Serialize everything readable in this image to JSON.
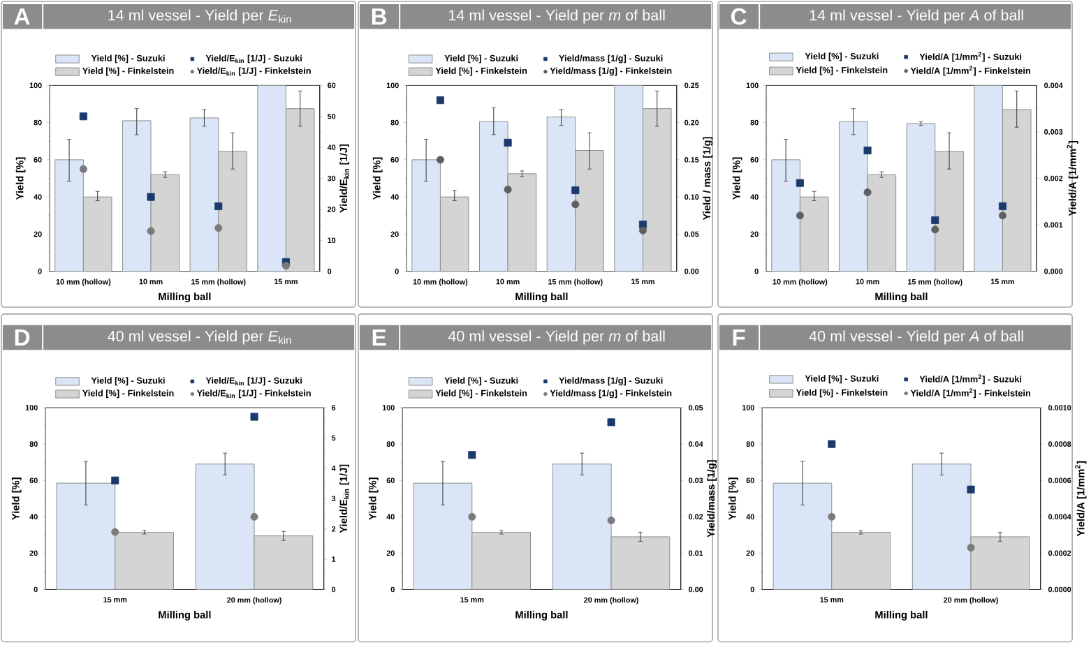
{
  "chart_data": [
    {
      "type": "bar",
      "title": "14 ml vessel - Yield per *E*$_{kin}$",
      "annotations": [
        "A"
      ],
      "categories": [
        "10 mm (hollow)",
        "10 mm",
        "15 mm (hollow)",
        "15 mm"
      ],
      "xlabel": "Milling ball",
      "ylabel": "Yield [%]",
      "y2label": "Yield/E$_{kin}$ [1/J]",
      "ylim": [
        0,
        100
      ],
      "yticks": [
        0,
        20,
        40,
        60,
        80,
        100
      ],
      "y2lim": [
        0,
        60
      ],
      "y2ticks": [
        0,
        10,
        20,
        30,
        40,
        50,
        60
      ],
      "legend": "top",
      "series": [
        {
          "name": "Yield [%] - Suzuki",
          "type": "bar",
          "color": "#dae6f7",
          "values": [
            60,
            81,
            82.5,
            100
          ],
          "errors": [
            [
              48.5,
              71
            ],
            [
              73.5,
              87.5
            ],
            [
              78,
              87
            ],
            null
          ]
        },
        {
          "name": "Yield/E$_{kin}$ [1/J] - Suzuki",
          "type": "scatter",
          "axis": "y2",
          "marker": "square",
          "color": "#1a3a6b",
          "values": [
            50,
            24,
            21,
            3
          ]
        },
        {
          "name": "Yield [%] - Finkelstein",
          "type": "bar",
          "color": "#d4d4d4",
          "values": [
            40,
            52,
            64.5,
            87.5
          ],
          "errors": [
            [
              38,
              43
            ],
            [
              50.5,
              53.5
            ],
            [
              55,
              74.5
            ],
            [
              78,
              97
            ]
          ]
        },
        {
          "name": "Yield/E$_{kin}$ [1/J] - Finkelstein",
          "type": "scatter",
          "axis": "y2",
          "marker": "circle",
          "color": "#7a7a7a",
          "values": [
            33,
            13,
            14,
            1.8
          ]
        }
      ]
    },
    {
      "type": "bar",
      "title": "14 ml vessel - Yield per *m* of ball",
      "annotations": [
        "B"
      ],
      "categories": [
        "10 mm (hollow)",
        "10 mm",
        "15 mm (hollow)",
        "15 mm"
      ],
      "xlabel": "Milling ball",
      "ylabel": "Yield [%]",
      "y2label": "Yield / mass [1/g]",
      "ylim": [
        0,
        100
      ],
      "yticks": [
        0,
        20,
        40,
        60,
        80,
        100
      ],
      "y2lim": [
        0,
        0.25
      ],
      "y2ticks": [
        {
          "value": 0,
          "label": "0.00"
        },
        0.05,
        {
          "value": 0.1,
          "label": "0.10"
        },
        0.15,
        {
          "value": 0.2,
          "label": "0.20"
        },
        0.25
      ],
      "legend": "top",
      "series": [
        {
          "name": "Yield [%] - Suzuki",
          "type": "bar",
          "color": "#dae6f7",
          "values": [
            60,
            80.5,
            83,
            100
          ],
          "errors": [
            [
              48.5,
              71
            ],
            [
              73.5,
              88
            ],
            [
              78.5,
              87
            ],
            null
          ]
        },
        {
          "name": "Yield/mass [1/g] - Suzuki",
          "type": "scatter",
          "axis": "y2",
          "marker": "square",
          "color": "#1a3a6b",
          "values": [
            0.23,
            0.173,
            0.109,
            0.063
          ]
        },
        {
          "name": "Yield [%] - Finkelstein",
          "type": "bar",
          "color": "#d4d4d4",
          "values": [
            40,
            52.5,
            65,
            87.5
          ],
          "errors": [
            [
              38,
              43.5
            ],
            [
              51,
              54
            ],
            [
              55,
              74.5
            ],
            [
              78,
              97
            ]
          ]
        },
        {
          "name": "Yield/mass [1/g] - Finkelstein",
          "type": "scatter",
          "axis": "y2",
          "marker": "circle",
          "color": "#5f5f5f",
          "values": [
            0.15,
            0.11,
            0.09,
            0.055
          ]
        }
      ]
    },
    {
      "type": "bar",
      "title": "14 ml vessel - Yield per *A* of ball",
      "annotations": [
        "C"
      ],
      "categories": [
        "10 mm (hollow)",
        "10 mm",
        "15 mm (hollow)",
        "15 mm"
      ],
      "xlabel": "Milling ball",
      "ylabel": "Yield [%]",
      "y2label": "Yield/A [1/mm$^{2}$]",
      "ylim": [
        0,
        100
      ],
      "yticks": [
        0,
        20,
        40,
        60,
        80,
        100
      ],
      "y2lim": [
        0,
        0.004
      ],
      "y2ticks": [
        {
          "value": 0,
          "label": "0.000"
        },
        0.001,
        0.002,
        0.003,
        0.004
      ],
      "legend": "top",
      "series": [
        {
          "name": "Yield [%] - Suzuki",
          "type": "bar",
          "color": "#dae6f7",
          "values": [
            60,
            80.5,
            79.5,
            100
          ],
          "errors": [
            [
              48.5,
              71
            ],
            [
              73.5,
              87.5
            ],
            [
              78.5,
              80.5
            ],
            null
          ]
        },
        {
          "name": "Yield/A [1/mm$^{2}$] - Suzuki",
          "type": "scatter",
          "axis": "y2",
          "marker": "square",
          "color": "#1a3a6b",
          "values": [
            0.0019,
            0.0026,
            0.0011,
            0.0014
          ]
        },
        {
          "name": "Yield [%] - Finkelstein",
          "type": "bar",
          "color": "#d4d4d4",
          "values": [
            40,
            52,
            64.5,
            87
          ],
          "errors": [
            [
              38,
              43
            ],
            [
              50.5,
              53.5
            ],
            [
              55,
              74.5
            ],
            [
              77.5,
              97
            ]
          ]
        },
        {
          "name": "Yield/A [1/mm$^{2}$] - Finkelstein",
          "type": "scatter",
          "axis": "y2",
          "marker": "circle",
          "color": "#5f5f5f",
          "values": [
            0.0012,
            0.0017,
            0.0009,
            0.0012
          ]
        }
      ]
    },
    {
      "type": "bar",
      "title": "40 ml vessel - Yield per *E*$_{kin}$",
      "annotations": [
        "D"
      ],
      "categories": [
        "15 mm",
        "20 mm (hollow)"
      ],
      "xlabel": "Milling ball",
      "ylabel": "Yield [%]",
      "y2label": "Yield/E$_{kin}$ [1/J]",
      "ylim": [
        0,
        100
      ],
      "yticks": [
        0,
        20,
        40,
        60,
        80,
        100
      ],
      "y2lim": [
        0,
        6
      ],
      "y2ticks": [
        0,
        1,
        2,
        3,
        4,
        5,
        6
      ],
      "legend": "top",
      "series": [
        {
          "name": "Yield [%] - Suzuki",
          "type": "bar",
          "color": "#dae6f7",
          "values": [
            58.5,
            69
          ],
          "errors": [
            [
              46.5,
              70.5
            ],
            [
              63,
              75
            ]
          ]
        },
        {
          "name": "Yield/E$_{kin}$ [1/J] - Suzuki",
          "type": "scatter",
          "axis": "y2",
          "marker": "square",
          "color": "#1a3a6b",
          "values": [
            3.6,
            5.7
          ]
        },
        {
          "name": "Yield [%] - Finkelstein",
          "type": "bar",
          "color": "#d4d4d4",
          "values": [
            31.5,
            29.5
          ],
          "errors": [
            [
              30.5,
              32.5
            ],
            [
              27,
              32
            ]
          ]
        },
        {
          "name": "Yield/E$_{kin}$ [1/J] - Finkelstein",
          "type": "scatter",
          "axis": "y2",
          "marker": "circle",
          "color": "#7a7a7a",
          "values": [
            1.9,
            2.4
          ]
        }
      ]
    },
    {
      "type": "bar",
      "title": "40 ml vessel - Yield per *m* of ball",
      "annotations": [
        "E"
      ],
      "categories": [
        "15 mm",
        "20 mm (hollow)"
      ],
      "xlabel": "Milling ball",
      "ylabel": "Yield [%]",
      "y2label": "Yield/mass [1/g]",
      "ylim": [
        0,
        100
      ],
      "yticks": [
        0,
        20,
        40,
        60,
        80,
        100
      ],
      "y2lim": [
        0,
        0.05
      ],
      "y2ticks": [
        {
          "value": 0,
          "label": "0.00"
        },
        0.01,
        0.02,
        0.03,
        0.04,
        0.05
      ],
      "legend": "top",
      "series": [
        {
          "name": "Yield [%] - Suzuki",
          "type": "bar",
          "color": "#dae6f7",
          "values": [
            58.5,
            69
          ],
          "errors": [
            [
              46.5,
              70.5
            ],
            [
              63,
              75
            ]
          ]
        },
        {
          "name": "Yield/mass [1/g] - Suzuki",
          "type": "scatter",
          "axis": "y2",
          "marker": "square",
          "color": "#1a3a6b",
          "values": [
            0.037,
            0.046
          ]
        },
        {
          "name": "Yield [%] - Finkelstein",
          "type": "bar",
          "color": "#d4d4d4",
          "values": [
            31.5,
            29
          ],
          "errors": [
            [
              30.5,
              32.5
            ],
            [
              26.5,
              31.5
            ]
          ]
        },
        {
          "name": "Yield/mass [1/g] - Finkelstein",
          "type": "scatter",
          "axis": "y2",
          "marker": "circle",
          "color": "#7a7a7a",
          "values": [
            0.02,
            0.019
          ]
        }
      ]
    },
    {
      "type": "bar",
      "title": "40 ml vessel - Yield per *A* of ball",
      "annotations": [
        "F"
      ],
      "categories": [
        "15 mm",
        "20 mm (hollow)"
      ],
      "xlabel": "Milling ball",
      "ylabel": "Yield [%]",
      "y2label": "Yield/A [1/mm$^{2}$]",
      "ylim": [
        0,
        100
      ],
      "yticks": [
        0,
        20,
        40,
        60,
        80,
        100
      ],
      "y2lim": [
        0,
        0.001
      ],
      "y2ticks": [
        {
          "value": 0,
          "label": "0.0000"
        },
        0.0002,
        0.0004,
        0.0006,
        0.0008,
        {
          "value": 0.001,
          "label": "0.0010"
        }
      ],
      "legend": "top",
      "series": [
        {
          "name": "Yield [%] - Suzuki",
          "type": "bar",
          "color": "#dae6f7",
          "values": [
            58.5,
            69
          ],
          "errors": [
            [
              46.5,
              70.5
            ],
            [
              63,
              75
            ]
          ]
        },
        {
          "name": "Yield/A [1/mm$^{2}$] - Suzuki",
          "type": "scatter",
          "axis": "y2",
          "marker": "square",
          "color": "#1a3a6b",
          "values": [
            0.0008,
            0.00055
          ]
        },
        {
          "name": "Yield [%] - Finkelstein",
          "type": "bar",
          "color": "#d4d4d4",
          "values": [
            31.5,
            29
          ],
          "errors": [
            [
              30.5,
              32.5
            ],
            [
              26.5,
              31.5
            ]
          ]
        },
        {
          "name": "Yield/A [1/mm$^{2}$] - Finkelstein",
          "type": "scatter",
          "axis": "y2",
          "marker": "circle",
          "color": "#7a7a7a",
          "values": [
            0.0004,
            0.00023
          ]
        }
      ]
    }
  ]
}
